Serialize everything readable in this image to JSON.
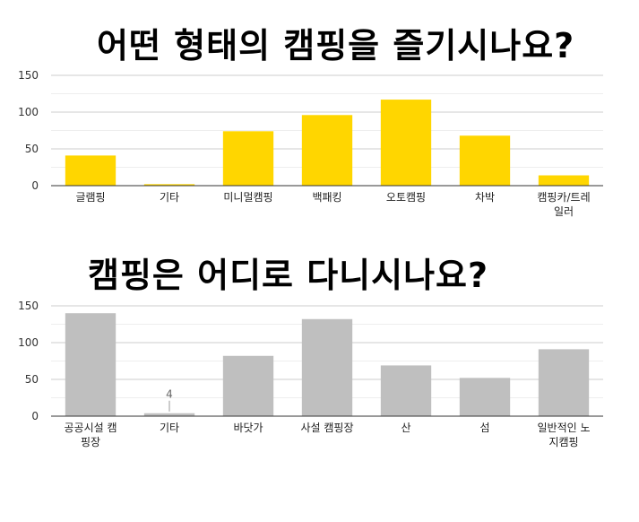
{
  "chart_data": [
    {
      "type": "bar",
      "title": "어떤 형태의 캠핑을 즐기시나요?",
      "categories": [
        "글램핑",
        "기타",
        "미니멀캠핑",
        "백패킹",
        "오토캠핑",
        "차박",
        "캠핑카/트레일러"
      ],
      "category_lines": [
        [
          "글램핑"
        ],
        [
          "기타"
        ],
        [
          "미니멀캠핑"
        ],
        [
          "백패킹"
        ],
        [
          "오토캠핑"
        ],
        [
          "차박"
        ],
        [
          "캠핑카/트레",
          "일러"
        ]
      ],
      "values": [
        41,
        2,
        74,
        96,
        117,
        68,
        14
      ],
      "ylim": [
        0,
        150
      ],
      "yticks": [
        0,
        50,
        100,
        150
      ],
      "color": "#FFD600",
      "grid": true,
      "legend": "none"
    },
    {
      "type": "bar",
      "title": "캠핑은 어디로 다니시나요?",
      "categories": [
        "공공시설 캠핑장",
        "기타",
        "바닷가",
        "사설 캠핑장",
        "산",
        "섬",
        "일반적인 노지캠핑"
      ],
      "category_lines": [
        [
          "공공시설 캠",
          "핑장"
        ],
        [
          "기타"
        ],
        [
          "바닷가"
        ],
        [
          "사설 캠핑장"
        ],
        [
          "산"
        ],
        [
          "섬"
        ],
        [
          "일반적인 노",
          "지캠핑"
        ]
      ],
      "values": [
        140,
        4,
        82,
        132,
        69,
        52,
        91
      ],
      "data_labels": {
        "1": "4"
      },
      "ylim": [
        0,
        150
      ],
      "yticks": [
        0,
        50,
        100,
        150
      ],
      "color": "#BFBFBF",
      "grid": true,
      "legend": "none"
    }
  ]
}
